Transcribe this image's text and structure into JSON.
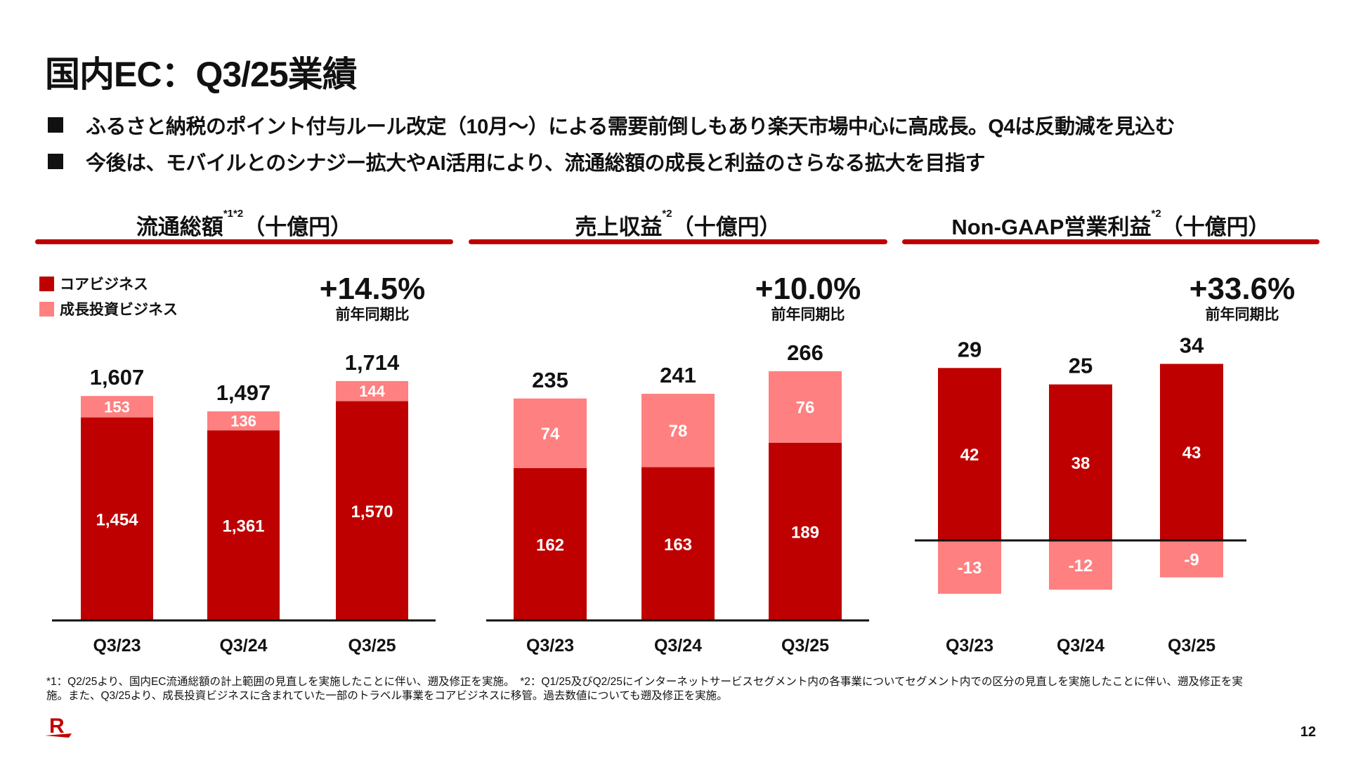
{
  "page": {
    "title": "国内EC：Q3/25業績",
    "bullets": [
      "ふるさと納税のポイント付与ルール改定（10月～）による需要前倒しもあり楽天市場中心に高成長。Q4は反動減を見込む",
      "今後は、モバイルとのシナジー拡大やAI活用により、流通総額の成長と利益のさらなる拡大を目指す"
    ],
    "legend": [
      {
        "label": "コアビジネス",
        "color": "#bf0000"
      },
      {
        "label": "成長投資ビジネス",
        "color": "#ff8080"
      }
    ],
    "growth_label": "前年同期比",
    "footnote_line1": "*1：Q2/25より、国内EC流通総額の計上範囲の見直しを実施したことに伴い、遡及修正を実施。　*2：Q1/25及びQ2/25にインターネットサービスセグメント内の各事業についてセグメント内での区分の見直しを実施したことに伴い、遡及修正を実",
    "footnote_line2": "施。また、Q3/25より、成長投資ビジネスに含まれていた一部のトラベル事業をコアビジネスに移管。過去数値についても遡及修正を実施。",
    "page_number": "12",
    "logo": "R",
    "colors": {
      "accent": "#bf0000",
      "core": "#bf0000",
      "growth_invest": "#ff8080",
      "text": "#111111"
    }
  },
  "chart_data": [
    {
      "type": "bar",
      "stacked": true,
      "title": "流通総額",
      "title_sup": "*1*2",
      "unit": "（十億円）",
      "yoy": "+14.5%",
      "categories": [
        "Q3/23",
        "Q3/24",
        "Q3/25"
      ],
      "series": [
        {
          "name": "コアビジネス",
          "values": [
            1454,
            1361,
            1570
          ],
          "labels": [
            "1,454",
            "1,361",
            "1,570"
          ]
        },
        {
          "name": "成長投資ビジネス",
          "values": [
            153,
            136,
            144
          ],
          "labels": [
            "153",
            "136",
            "144"
          ]
        }
      ],
      "totals": [
        1607,
        1497,
        1714
      ],
      "total_labels": [
        "1,607",
        "1,497",
        "1,714"
      ],
      "ylim": [
        0,
        1800
      ]
    },
    {
      "type": "bar",
      "stacked": true,
      "title": "売上収益",
      "title_sup": "*2",
      "unit": "（十億円）",
      "yoy": "+10.0%",
      "categories": [
        "Q3/23",
        "Q3/24",
        "Q3/25"
      ],
      "series": [
        {
          "name": "コアビジネス",
          "values": [
            162,
            163,
            189
          ],
          "labels": [
            "162",
            "163",
            "189"
          ]
        },
        {
          "name": "成長投資ビジネス",
          "values": [
            74,
            78,
            76
          ],
          "labels": [
            "74",
            "78",
            "76"
          ]
        }
      ],
      "totals": [
        235,
        241,
        266
      ],
      "total_labels": [
        "235",
        "241",
        "266"
      ],
      "ylim": [
        0,
        280
      ]
    },
    {
      "type": "bar",
      "stacked": true,
      "title": "Non-GAAP営業利益",
      "title_sup": "*2",
      "unit": "（十億円）",
      "yoy": "+33.6%",
      "categories": [
        "Q3/23",
        "Q3/24",
        "Q3/25"
      ],
      "series": [
        {
          "name": "コアビジネス",
          "values": [
            42,
            38,
            43
          ],
          "labels": [
            "42",
            "38",
            "43"
          ]
        },
        {
          "name": "成長投資ビジネス",
          "values": [
            -13,
            -12,
            -9
          ],
          "labels": [
            "-13",
            "-12",
            "-9"
          ]
        }
      ],
      "totals": [
        29,
        25,
        34
      ],
      "total_labels": [
        "29",
        "25",
        "34"
      ],
      "ylim": [
        -15,
        45
      ]
    }
  ]
}
